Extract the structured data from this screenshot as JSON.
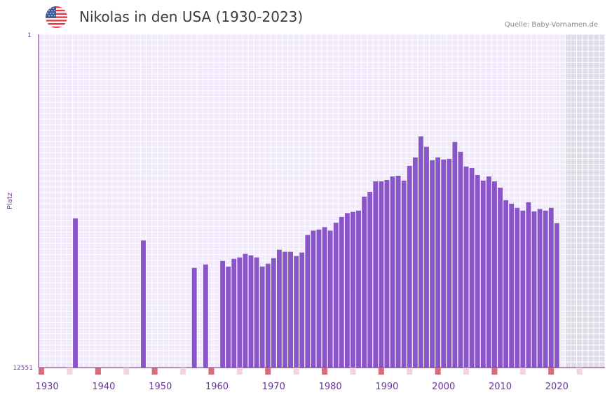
{
  "header": {
    "title": "Nikolas in den USA (1930-2023)",
    "source": "Quelle: Baby-Vornamen.de"
  },
  "chart_data": {
    "type": "bar",
    "title": "Nikolas in den USA (1930-2023)",
    "xlabel": "",
    "ylabel": "Platz",
    "y_axis_inverted": true,
    "ylim": [
      1,
      12551
    ],
    "ytick_labels": [
      "1",
      "12551"
    ],
    "xlim": [
      1929,
      2029
    ],
    "xtick_labels": [
      "1930",
      "1940",
      "1950",
      "1960",
      "1970",
      "1980",
      "1990",
      "2000",
      "2010",
      "2020"
    ],
    "colors": {
      "bar": "#8a55c8",
      "plot_bg": "#f0eafa",
      "grid": "#ffffff",
      "shade": "#e0dcea",
      "axis": "#6b2d7a",
      "marker": "#d96b7a",
      "marker_light": "#f5d5dc"
    },
    "series": [
      {
        "name": "Platz",
        "x": [
          1935,
          1947,
          1956,
          1958,
          1961,
          1962,
          1963,
          1964,
          1965,
          1966,
          1967,
          1968,
          1969,
          1970,
          1971,
          1972,
          1973,
          1974,
          1975,
          1976,
          1977,
          1978,
          1979,
          1980,
          1981,
          1982,
          1983,
          1984,
          1985,
          1986,
          1987,
          1988,
          1989,
          1990,
          1991,
          1992,
          1993,
          1994,
          1995,
          1996,
          1997,
          1998,
          1999,
          2000,
          2001,
          2002,
          2003,
          2004,
          2005,
          2006,
          2007,
          2008,
          2009,
          2010,
          2011,
          2012,
          2013,
          2014,
          2015,
          2016,
          2017,
          2018,
          2019,
          2020,
          2021
        ],
        "values": [
          6933,
          7763,
          8798,
          8667,
          8535,
          8746,
          8456,
          8403,
          8271,
          8324,
          8403,
          8746,
          8640,
          8429,
          8113,
          8192,
          8192,
          8350,
          8218,
          7560,
          7394,
          7353,
          7261,
          7394,
          7098,
          6880,
          6734,
          6689,
          6642,
          6113,
          5935,
          5538,
          5538,
          5485,
          5353,
          5326,
          5511,
          4955,
          4637,
          3842,
          4240,
          4743,
          4637,
          4716,
          4690,
          4055,
          4426,
          4980,
          5036,
          5300,
          5511,
          5353,
          5538,
          5776,
          6247,
          6379,
          6534,
          6642,
          6325,
          6670,
          6580,
          6642,
          6534,
          7114,
          12551
        ]
      }
    ]
  }
}
